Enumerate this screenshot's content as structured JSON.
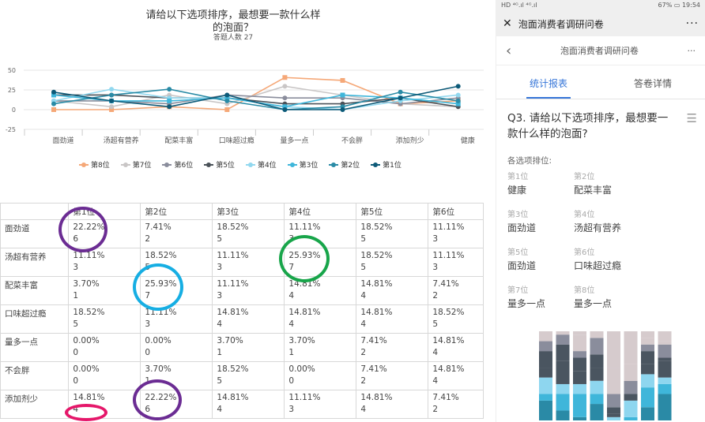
{
  "chart_data": {
    "type": "line",
    "title": "请给以下选项排序，最想要一款什么样的泡面？",
    "title_line1": "请给以下选项排序，最想要一款什么样",
    "title_line2": "的泡面？",
    "subtitle": "答题人数 27",
    "categories": [
      "面劲道",
      "汤超有营养",
      "配菜丰富",
      "口味超过瘾",
      "量多一点",
      "不会胖",
      "添加剂少",
      "健康"
    ],
    "yticks": [
      "50",
      "25",
      "0",
      "-25"
    ],
    "ylim": [
      -25,
      50
    ],
    "series": [
      {
        "name": "第8位",
        "color": "#f5a878",
        "marker": "square",
        "values": [
          0,
          0,
          3.7,
          0,
          40.74,
          37.04,
          7.41,
          11.11
        ]
      },
      {
        "name": "第7位",
        "color": "#c9c6c6",
        "marker": "diamond",
        "values": [
          11.11,
          3.7,
          18.52,
          7.41,
          29.63,
          18.52,
          7.41,
          3.7
        ]
      },
      {
        "name": "第6位",
        "color": "#8a8d9c",
        "marker": "circle",
        "values": [
          11.11,
          11.11,
          7.41,
          18.52,
          14.81,
          14.81,
          7.41,
          14.81
        ]
      },
      {
        "name": "第5位",
        "color": "#4b5259",
        "marker": "tri-down",
        "values": [
          18.52,
          18.52,
          14.81,
          14.81,
          7.41,
          7.41,
          14.81,
          3.7
        ]
      },
      {
        "name": "第4位",
        "color": "#92d8ef",
        "marker": "triangle",
        "values": [
          11.11,
          25.93,
          14.81,
          14.81,
          3.7,
          0,
          11.11,
          18.52
        ]
      },
      {
        "name": "第3位",
        "color": "#3fb6da",
        "marker": "square",
        "values": [
          18.52,
          11.11,
          11.11,
          14.81,
          3.7,
          18.52,
          14.81,
          7.41
        ]
      },
      {
        "name": "第2位",
        "color": "#2a8ba6",
        "marker": "diamond",
        "values": [
          7.41,
          18.52,
          25.93,
          11.11,
          0,
          3.7,
          22.22,
          11.11
        ]
      },
      {
        "name": "第1位",
        "color": "#0d5a78",
        "marker": "circle",
        "values": [
          22.22,
          11.11,
          3.7,
          18.52,
          0,
          0,
          14.81,
          29.63
        ]
      }
    ]
  },
  "table": {
    "headers": [
      "第1位",
      "第2位",
      "第3位",
      "第4位",
      "第5位",
      "第6位"
    ],
    "rows": [
      {
        "label": "面劲道",
        "cells": [
          [
            "22.22%",
            "6"
          ],
          [
            "7.41%",
            "2"
          ],
          [
            "18.52%",
            "5"
          ],
          [
            "11.11%",
            "3"
          ],
          [
            "18.52%",
            "5"
          ],
          [
            "11.11%",
            "3"
          ]
        ]
      },
      {
        "label": "汤超有营养",
        "cells": [
          [
            "11.11%",
            "3"
          ],
          [
            "18.52%",
            "5"
          ],
          [
            "11.11%",
            "3"
          ],
          [
            "25.93%",
            "7"
          ],
          [
            "18.52%",
            "5"
          ],
          [
            "11.11%",
            "3"
          ]
        ]
      },
      {
        "label": "配菜丰富",
        "cells": [
          [
            "3.70%",
            "1"
          ],
          [
            "25.93%",
            "7"
          ],
          [
            "11.11%",
            "3"
          ],
          [
            "14.81%",
            "4"
          ],
          [
            "14.81%",
            "4"
          ],
          [
            "7.41%",
            "2"
          ]
        ]
      },
      {
        "label": "口味超过瘾",
        "cells": [
          [
            "18.52%",
            "5"
          ],
          [
            "11.11%",
            "3"
          ],
          [
            "14.81%",
            "4"
          ],
          [
            "14.81%",
            "4"
          ],
          [
            "14.81%",
            "4"
          ],
          [
            "18.52%",
            "5"
          ]
        ]
      },
      {
        "label": "量多一点",
        "cells": [
          [
            "0.00%",
            "0"
          ],
          [
            "0.00%",
            "0"
          ],
          [
            "3.70%",
            "1"
          ],
          [
            "3.70%",
            "1"
          ],
          [
            "7.41%",
            "2"
          ],
          [
            "14.81%",
            "4"
          ]
        ]
      },
      {
        "label": "不会胖",
        "cells": [
          [
            "0.00%",
            "0"
          ],
          [
            "3.70%",
            "1"
          ],
          [
            "18.52%",
            "5"
          ],
          [
            "0.00%",
            "0"
          ],
          [
            "7.41%",
            "2"
          ],
          [
            "14.81%",
            "4"
          ]
        ]
      },
      {
        "label": "添加剂少",
        "cells": [
          [
            "14.81%",
            "4"
          ],
          [
            "22.22%",
            "6"
          ],
          [
            "14.81%",
            "4"
          ],
          [
            "11.11%",
            "3"
          ],
          [
            "14.81%",
            "4"
          ],
          [
            "7.41%",
            "2"
          ]
        ]
      }
    ]
  },
  "phone": {
    "status_left": "HD ⁴ᴳ.ıl ⁴ᴳ.ıl",
    "status_right": "67% ▭ 19:54",
    "window_title": "泡面消费者调研问卷",
    "nav_title": "泡面消费者调研问卷",
    "tabs": [
      "统计报表",
      "答卷详情"
    ],
    "question": "Q3. 请给以下选项排序，最想要一款什么样的泡面?",
    "rank_label": "各选项排位:",
    "ranks": [
      {
        "n": "第1位",
        "v": "健康"
      },
      {
        "n": "第2位",
        "v": "配菜丰富"
      },
      {
        "n": "第3位",
        "v": "面劲道"
      },
      {
        "n": "第4位",
        "v": "汤超有营养"
      },
      {
        "n": "第5位",
        "v": "面劲道"
      },
      {
        "n": "第6位",
        "v": "口味超过瘾"
      },
      {
        "n": "第7位",
        "v": "量多一点"
      },
      {
        "n": "第8位",
        "v": "量多一点"
      }
    ],
    "stack_colors": [
      "#2a8aa6",
      "#3fb6da",
      "#8ed6ef",
      "#4a5560",
      "#4a5560",
      "#8a8d9c",
      "#d6cbcd",
      "#d6cbcd"
    ]
  }
}
